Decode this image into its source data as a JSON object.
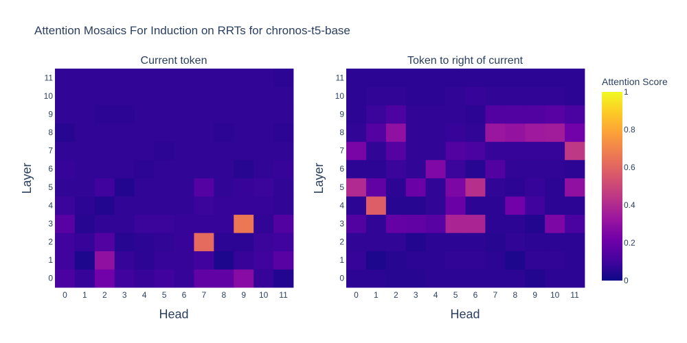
{
  "chart_data": {
    "type": "heatmap",
    "title": "Attention Mosaics For Induction on RRTs for chronos-t5-base",
    "xlabel": "Head",
    "ylabel": "Layer",
    "x": [
      0,
      1,
      2,
      3,
      4,
      5,
      6,
      7,
      8,
      9,
      10,
      11
    ],
    "y": [
      0,
      1,
      2,
      3,
      4,
      5,
      6,
      7,
      8,
      9,
      10,
      11
    ],
    "colorscale": "plasma",
    "colorbar": {
      "title": "Attention Score",
      "range": [
        0,
        1
      ],
      "ticks": [
        0,
        0.2,
        0.4,
        0.6,
        0.8,
        1
      ]
    },
    "panels": [
      {
        "subtitle": "Current token",
        "z": [
          [
            0.12,
            0.08,
            0.22,
            0.1,
            0.08,
            0.1,
            0.08,
            0.18,
            0.18,
            0.28,
            0.08,
            0.04
          ],
          [
            0.1,
            0.03,
            0.3,
            0.08,
            0.06,
            0.08,
            0.08,
            0.1,
            0.03,
            0.08,
            0.1,
            0.16
          ],
          [
            0.1,
            0.08,
            0.14,
            0.05,
            0.06,
            0.07,
            0.08,
            0.62,
            0.06,
            0.06,
            0.09,
            0.1
          ],
          [
            0.16,
            0.05,
            0.07,
            0.07,
            0.09,
            0.09,
            0.08,
            0.08,
            0.08,
            0.66,
            0.07,
            0.14
          ],
          [
            0.09,
            0.06,
            0.04,
            0.07,
            0.07,
            0.07,
            0.07,
            0.09,
            0.08,
            0.08,
            0.08,
            0.07
          ],
          [
            0.07,
            0.07,
            0.1,
            0.04,
            0.07,
            0.07,
            0.07,
            0.15,
            0.07,
            0.08,
            0.09,
            0.07
          ],
          [
            0.08,
            0.07,
            0.07,
            0.07,
            0.06,
            0.07,
            0.07,
            0.07,
            0.07,
            0.05,
            0.07,
            0.08
          ],
          [
            0.07,
            0.07,
            0.07,
            0.07,
            0.07,
            0.06,
            0.07,
            0.07,
            0.07,
            0.07,
            0.07,
            0.07
          ],
          [
            0.05,
            0.07,
            0.07,
            0.07,
            0.07,
            0.07,
            0.07,
            0.07,
            0.06,
            0.07,
            0.07,
            0.06
          ],
          [
            0.07,
            0.07,
            0.06,
            0.06,
            0.07,
            0.07,
            0.07,
            0.07,
            0.07,
            0.07,
            0.07,
            0.07
          ],
          [
            0.07,
            0.07,
            0.07,
            0.07,
            0.07,
            0.07,
            0.07,
            0.07,
            0.07,
            0.07,
            0.07,
            0.07
          ],
          [
            0.07,
            0.07,
            0.07,
            0.07,
            0.07,
            0.07,
            0.07,
            0.07,
            0.07,
            0.07,
            0.07,
            0.06
          ]
        ]
      },
      {
        "subtitle": "Token to right of current",
        "z": [
          [
            0.06,
            0.06,
            0.05,
            0.05,
            0.06,
            0.06,
            0.06,
            0.06,
            0.06,
            0.04,
            0.06,
            0.06
          ],
          [
            0.08,
            0.03,
            0.05,
            0.06,
            0.06,
            0.07,
            0.07,
            0.06,
            0.03,
            0.07,
            0.07,
            0.06
          ],
          [
            0.07,
            0.07,
            0.07,
            0.04,
            0.06,
            0.06,
            0.06,
            0.05,
            0.07,
            0.06,
            0.06,
            0.06
          ],
          [
            0.14,
            0.07,
            0.19,
            0.18,
            0.16,
            0.38,
            0.38,
            0.06,
            0.06,
            0.04,
            0.25,
            0.12
          ],
          [
            0.06,
            0.58,
            0.05,
            0.05,
            0.07,
            0.2,
            0.06,
            0.06,
            0.22,
            0.1,
            0.06,
            0.06
          ],
          [
            0.4,
            0.18,
            0.06,
            0.2,
            0.07,
            0.25,
            0.42,
            0.07,
            0.06,
            0.08,
            0.06,
            0.3
          ],
          [
            0.06,
            0.06,
            0.09,
            0.07,
            0.26,
            0.09,
            0.05,
            0.14,
            0.07,
            0.07,
            0.07,
            0.06
          ],
          [
            0.24,
            0.07,
            0.15,
            0.07,
            0.07,
            0.14,
            0.12,
            0.08,
            0.08,
            0.08,
            0.08,
            0.45
          ],
          [
            0.07,
            0.15,
            0.3,
            0.07,
            0.07,
            0.08,
            0.07,
            0.33,
            0.31,
            0.34,
            0.35,
            0.22
          ],
          [
            0.06,
            0.09,
            0.13,
            0.07,
            0.07,
            0.07,
            0.06,
            0.14,
            0.14,
            0.14,
            0.16,
            0.12
          ],
          [
            0.06,
            0.07,
            0.07,
            0.06,
            0.06,
            0.07,
            0.08,
            0.07,
            0.07,
            0.07,
            0.07,
            0.06
          ],
          [
            0.06,
            0.06,
            0.06,
            0.06,
            0.06,
            0.06,
            0.06,
            0.06,
            0.06,
            0.06,
            0.06,
            0.06
          ]
        ]
      }
    ]
  }
}
